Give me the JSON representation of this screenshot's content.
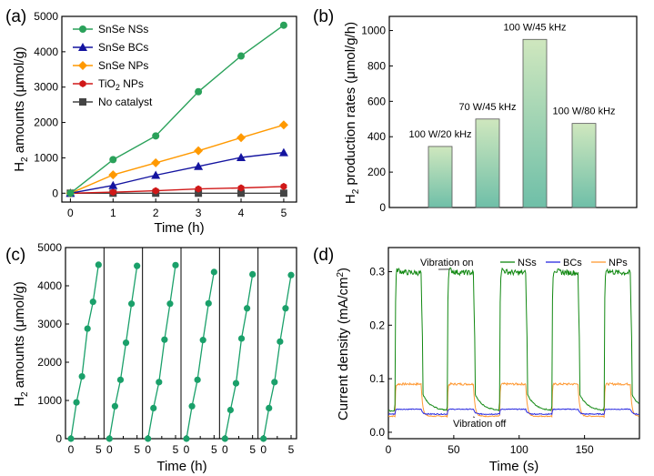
{
  "chart_data": [
    {
      "panel": "(a)",
      "type": "line",
      "xlabel": "Time (h)",
      "ylabel": "H2 amounts (μmol/g)",
      "xlim": [
        -0.2,
        5.3
      ],
      "ylim": [
        -250,
        5000
      ],
      "xticks": [
        0,
        1,
        2,
        3,
        4,
        5
      ],
      "yticks": [
        0,
        1000,
        2000,
        3000,
        4000,
        5000
      ],
      "legend_position": "top-left",
      "x": [
        0,
        1,
        2,
        3,
        4,
        5
      ],
      "series": [
        {
          "name": "SnSe NSs",
          "color": "#2aa15a",
          "marker": "circle",
          "values": [
            0,
            950,
            1620,
            2870,
            3880,
            4750
          ]
        },
        {
          "name": "SnSe BCs",
          "color": "#1414a0",
          "marker": "triangle",
          "values": [
            0,
            220,
            510,
            760,
            1010,
            1150
          ]
        },
        {
          "name": "SnSe NPs",
          "color": "#ff9900",
          "marker": "diamond",
          "values": [
            0,
            520,
            860,
            1200,
            1570,
            1930
          ]
        },
        {
          "name": "TiO2 NPs",
          "color": "#d01818",
          "marker": "hexagon",
          "values": [
            0,
            30,
            70,
            120,
            150,
            190
          ]
        },
        {
          "name": "No catalyst",
          "color": "#444444",
          "marker": "square",
          "values": [
            0,
            0,
            0,
            0,
            0,
            0
          ]
        }
      ]
    },
    {
      "panel": "(b)",
      "type": "bar",
      "ylabel": "H2 production rates (μmol/g/h)",
      "ylim": [
        0,
        1080
      ],
      "yticks": [
        0,
        200,
        400,
        600,
        800,
        1000
      ],
      "categories": [
        "100 W/20 kHz",
        "70 W/45 kHz",
        "100 W/45 kHz",
        "100 W/80 kHz"
      ],
      "values": [
        345,
        500,
        950,
        475
      ],
      "gradient": [
        "#cfe7be",
        "#6fbfa8"
      ]
    },
    {
      "panel": "(c)",
      "type": "scatter",
      "xlabel": "Time (h)",
      "ylabel": "H2 amounts (μmol/g)",
      "ylim": [
        0,
        5000
      ],
      "yticks": [
        0,
        1000,
        2000,
        3000,
        4000,
        5000
      ],
      "cycle_xticks": [
        0,
        5
      ],
      "cycle_mid_tick": 2.5,
      "color": "#1aa06a",
      "cycles": [
        {
          "x": [
            0,
            1,
            2,
            3,
            4,
            5
          ],
          "values": [
            0,
            950,
            1630,
            2880,
            3580,
            4550
          ]
        },
        {
          "x": [
            0,
            1,
            2,
            3,
            4,
            5
          ],
          "values": [
            0,
            850,
            1540,
            2510,
            3530,
            4520
          ]
        },
        {
          "x": [
            0,
            1,
            2,
            3,
            4,
            5
          ],
          "values": [
            0,
            800,
            1480,
            2590,
            3530,
            4540
          ]
        },
        {
          "x": [
            0,
            1,
            2,
            3,
            4,
            5
          ],
          "values": [
            0,
            850,
            1540,
            2580,
            3540,
            4360
          ]
        },
        {
          "x": [
            0,
            1,
            2,
            3,
            4,
            5
          ],
          "values": [
            0,
            750,
            1450,
            2620,
            3410,
            4300
          ]
        },
        {
          "x": [
            0,
            1,
            2,
            3,
            4,
            5
          ],
          "values": [
            0,
            800,
            1480,
            2540,
            3410,
            4280
          ]
        }
      ]
    },
    {
      "panel": "(d)",
      "type": "line",
      "xlabel": "Time (s)",
      "ylabel": "Current density (mA/cm²)",
      "xlim": [
        0,
        192
      ],
      "ylim": [
        -0.012,
        0.345
      ],
      "xticks": [
        0,
        50,
        100,
        150
      ],
      "yticks": [
        0.0,
        0.1,
        0.2,
        0.3
      ],
      "legend_position": "top-right",
      "on_periods": [
        [
          5,
          25
        ],
        [
          45,
          65
        ],
        [
          85,
          105
        ],
        [
          125,
          145
        ],
        [
          165,
          185
        ]
      ],
      "series": [
        {
          "name": "NSs",
          "color": "#118811",
          "off_level": 0.04,
          "on_level": 0.298
        },
        {
          "name": "BCs",
          "color": "#2a2ae0",
          "off_level": 0.034,
          "on_level": 0.043
        },
        {
          "name": "NPs",
          "color": "#ff9933",
          "off_level": 0.03,
          "on_level": 0.09
        }
      ],
      "annotations": [
        {
          "text": "Vibration on",
          "x": 47,
          "y": 0.301
        },
        {
          "text": "Vibration off",
          "x": 66,
          "y": 0.035
        }
      ]
    }
  ]
}
